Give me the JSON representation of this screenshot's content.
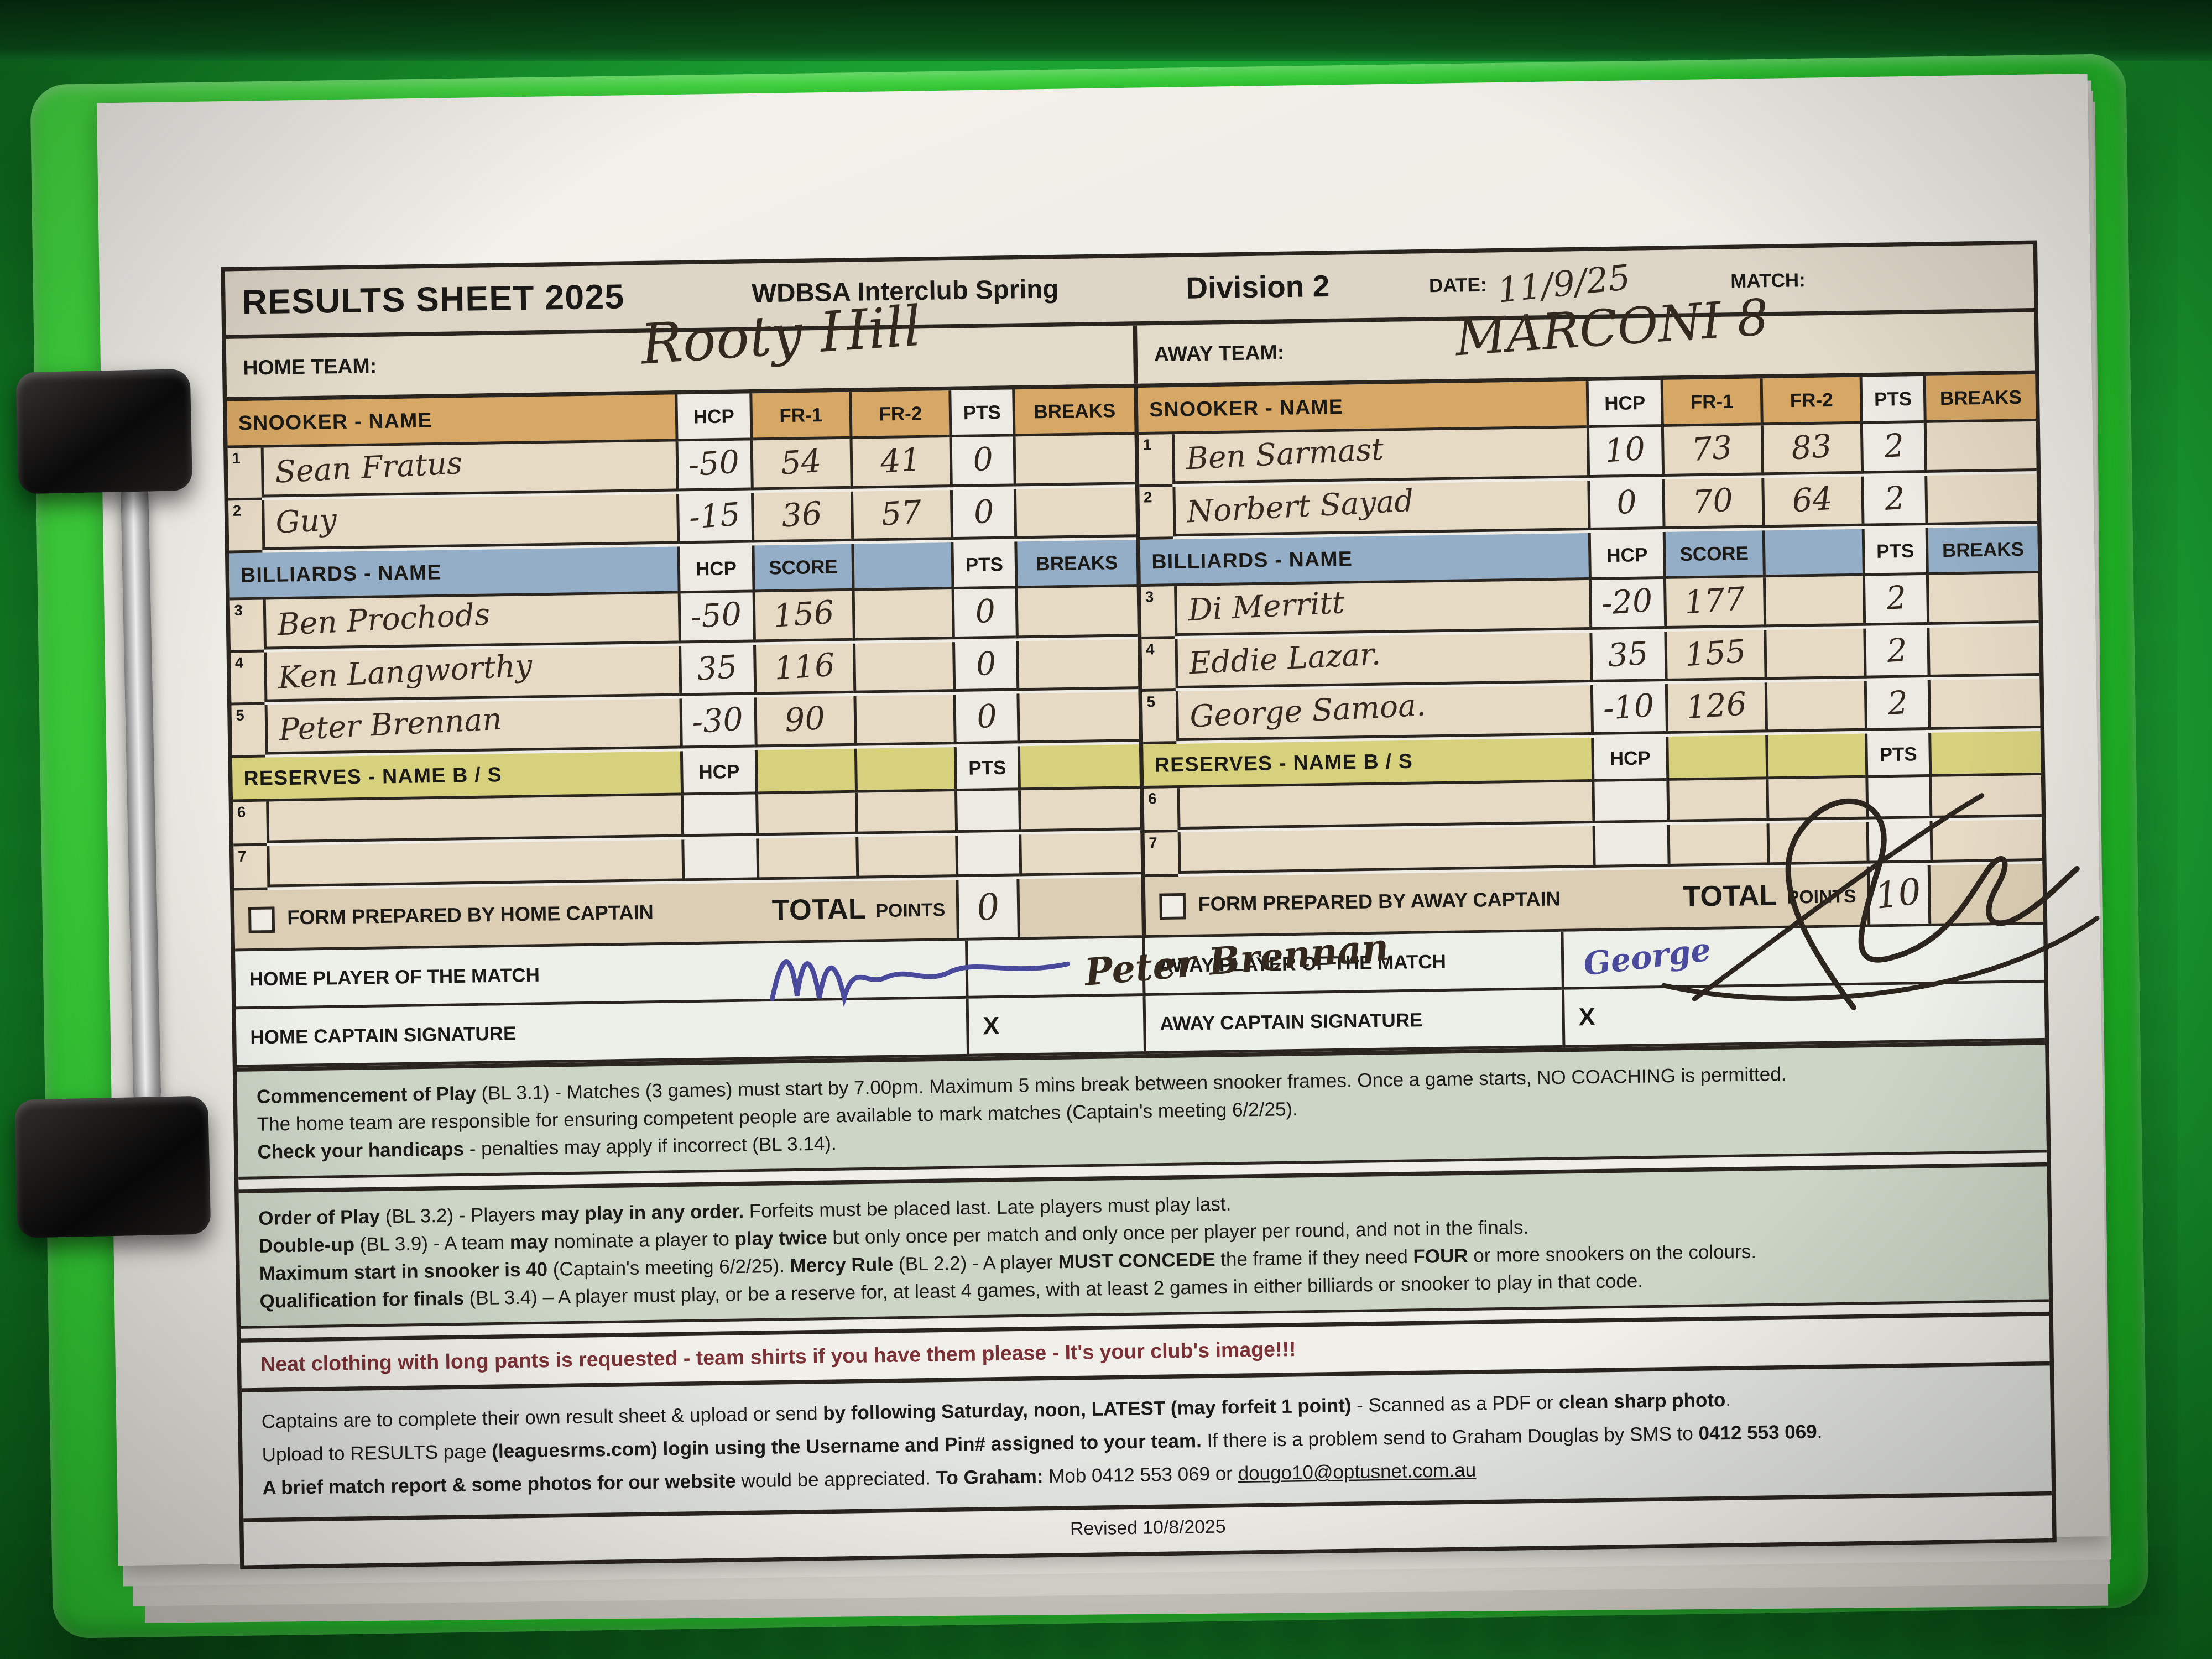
{
  "header": {
    "title": "RESULTS SHEET 2025",
    "competition": "WDBSA Interclub Spring",
    "division": "Division 2",
    "date_label": "DATE:",
    "date_value": "11/9/25",
    "match_label": "MATCH:",
    "match_value": ""
  },
  "teams": {
    "home_label": "HOME TEAM:",
    "home_value": "Rooty Hill",
    "away_label": "AWAY TEAM:",
    "away_value": "MARCONI 8"
  },
  "columns": {
    "snooker_name": "SNOOKER   -    NAME",
    "billiards_name": "BILLIARDS   -   NAME",
    "reserves_name": "RESERVES  -  NAME B / S",
    "hcp": "HCP",
    "fr1": "FR-1",
    "fr2": "FR-2",
    "score": "SCORE",
    "pts": "PTS",
    "breaks": "BREAKS"
  },
  "totals": {
    "total_label": "TOTAL",
    "points_label": "POINTS"
  },
  "home": {
    "form_prepared_label": "FORM PREPARED BY HOME CAPTAIN",
    "total_points": "0",
    "pom_label": "HOME PLAYER OF THE MATCH",
    "pom_value": "Peter Brennan",
    "sig_label": "HOME CAPTAIN SIGNATURE",
    "sig_x": "X",
    "sig_value": "",
    "snooker_rows": [
      {
        "num": "1",
        "name": "Sean Fratus",
        "hcp": "-50",
        "fr1": "54",
        "fr2": "41",
        "pts": "0",
        "breaks": ""
      },
      {
        "num": "2",
        "name": "Guy",
        "hcp": "-15",
        "fr1": "36",
        "fr2": "57",
        "pts": "0",
        "breaks": ""
      }
    ],
    "billiards_rows": [
      {
        "num": "3",
        "name": "Ben Prochods",
        "hcp": "-50",
        "score": "156",
        "pts": "0",
        "breaks": ""
      },
      {
        "num": "4",
        "name": "Ken Langworthy",
        "hcp": "35",
        "score": "116",
        "pts": "0",
        "breaks": ""
      },
      {
        "num": "5",
        "name": "Peter Brennan",
        "hcp": "-30",
        "score": "90",
        "pts": "0",
        "breaks": ""
      }
    ],
    "reserves_rows": [
      {
        "num": "6",
        "name": "",
        "hcp": "",
        "pts": ""
      },
      {
        "num": "7",
        "name": "",
        "hcp": "",
        "pts": ""
      }
    ]
  },
  "away": {
    "form_prepared_label": "FORM PREPARED BY AWAY CAPTAIN",
    "total_points": "10",
    "pom_label": "AWAY PLAYER OF THE MATCH",
    "pom_value": "George",
    "sig_label": "AWAY CAPTAIN SIGNATURE",
    "sig_x": "X",
    "sig_value": "",
    "snooker_rows": [
      {
        "num": "1",
        "name": "Ben Sarmast",
        "hcp": "10",
        "fr1": "73",
        "fr2": "83",
        "pts": "2",
        "breaks": ""
      },
      {
        "num": "2",
        "name": "Norbert Sayad",
        "hcp": "0",
        "fr1": "70",
        "fr2": "64",
        "pts": "2",
        "breaks": ""
      }
    ],
    "billiards_rows": [
      {
        "num": "3",
        "name": "Di Merritt",
        "hcp": "-20",
        "score": "177",
        "pts": "2",
        "breaks": ""
      },
      {
        "num": "4",
        "name": "Eddie Lazar.",
        "hcp": "35",
        "score": "155",
        "pts": "2",
        "breaks": ""
      },
      {
        "num": "5",
        "name": "George Samoa.",
        "hcp": "-10",
        "score": "126",
        "pts": "2",
        "breaks": ""
      }
    ],
    "reserves_rows": [
      {
        "num": "6",
        "name": "",
        "hcp": "",
        "pts": ""
      },
      {
        "num": "7",
        "name": "",
        "hcp": "",
        "pts": ""
      }
    ]
  },
  "rules": {
    "p1": [
      [
        {
          "t": "Commencement of Play",
          "b": true
        },
        {
          "t": " (BL 3.1) - Matches (3 games) must start by 7.00pm. Maximum 5 mins break between snooker frames. Once a game starts, NO COACHING is permitted.",
          "b": false
        }
      ],
      [
        {
          "t": "The home team are responsible for ensuring competent people are available to mark matches (Captain's meeting 6/2/25).",
          "b": false
        }
      ],
      [
        {
          "t": "Check your handicaps",
          "b": true
        },
        {
          "t": " - penalties may apply if incorrect (BL 3.14).",
          "b": false
        }
      ]
    ],
    "p2": [
      [
        {
          "t": "Order of Play",
          "b": true
        },
        {
          "t": " (BL 3.2) - Players ",
          "b": false
        },
        {
          "t": "may play in any order.",
          "b": true
        },
        {
          "t": " Forfeits must be placed last. Late players must play last.",
          "b": false
        }
      ],
      [
        {
          "t": "Double-up",
          "b": true
        },
        {
          "t": " (BL 3.9) - A team ",
          "b": false
        },
        {
          "t": "may",
          "b": true
        },
        {
          "t": " nominate a player to ",
          "b": false
        },
        {
          "t": "play twice",
          "b": true
        },
        {
          "t": " but only once per match and only once per player per round, and not in the finals.",
          "b": false
        }
      ],
      [
        {
          "t": "Maximum start in snooker is 40",
          "b": true
        },
        {
          "t": " (Captain's meeting 6/2/25).  ",
          "b": false
        },
        {
          "t": "Mercy Rule",
          "b": true
        },
        {
          "t": " (BL 2.2) - A player ",
          "b": false
        },
        {
          "t": "MUST CONCEDE",
          "b": true
        },
        {
          "t": " the frame if they need ",
          "b": false
        },
        {
          "t": "FOUR",
          "b": true
        },
        {
          "t": " or more snookers on the colours.",
          "b": false
        }
      ],
      [
        {
          "t": "Qualification for finals",
          "b": true
        },
        {
          "t": " (BL 3.4) – A player must play, or be a reserve for, at least 4 games, with at least 2 games in either billiards or snooker to play in that code.",
          "b": false
        }
      ]
    ],
    "dress_code": "Neat clothing with long pants is requested - team shirts if you have them please - It's your club's image!!!",
    "p3": [
      [
        {
          "t": "Captains are to complete their own result sheet & upload or send ",
          "b": false
        },
        {
          "t": "by following Saturday, noon, LATEST (may forfeit 1 point)",
          "b": true
        },
        {
          "t": " - Scanned as a PDF or ",
          "b": false
        },
        {
          "t": "clean sharp photo",
          "b": true
        },
        {
          "t": ".",
          "b": false
        }
      ],
      [
        {
          "t": "Upload to RESULTS page ",
          "b": false
        },
        {
          "t": "(leaguesrms.com) login using the Username and Pin# assigned to your team.",
          "b": true
        },
        {
          "t": " If there is a problem send to Graham Douglas by SMS to ",
          "b": false
        },
        {
          "t": "0412 553 069",
          "b": true
        },
        {
          "t": ".",
          "b": false
        }
      ],
      [
        {
          "t": "A brief match report & some photos for our website",
          "b": true
        },
        {
          "t": " would be appreciated. ",
          "b": false
        },
        {
          "t": "To Graham:",
          "b": true
        },
        {
          "t": " Mob 0412 553 069 or ",
          "b": false
        },
        {
          "t": "dougo10@optusnet.com.au",
          "b": false,
          "u": true
        }
      ]
    ]
  },
  "footer": "Revised 10/8/2025",
  "colors": {
    "snooker_header": "#d6a765",
    "billiards_header": "#93aec6",
    "reserves_header": "#d7d17e",
    "totals_band": "#dbceb4",
    "dress_code_text": "#7b3136",
    "pen_dark": "#33291f",
    "pen_blue": "#4a4a9c",
    "clipboard_green": "#27c32c",
    "cloth_green": "#1ca734"
  }
}
